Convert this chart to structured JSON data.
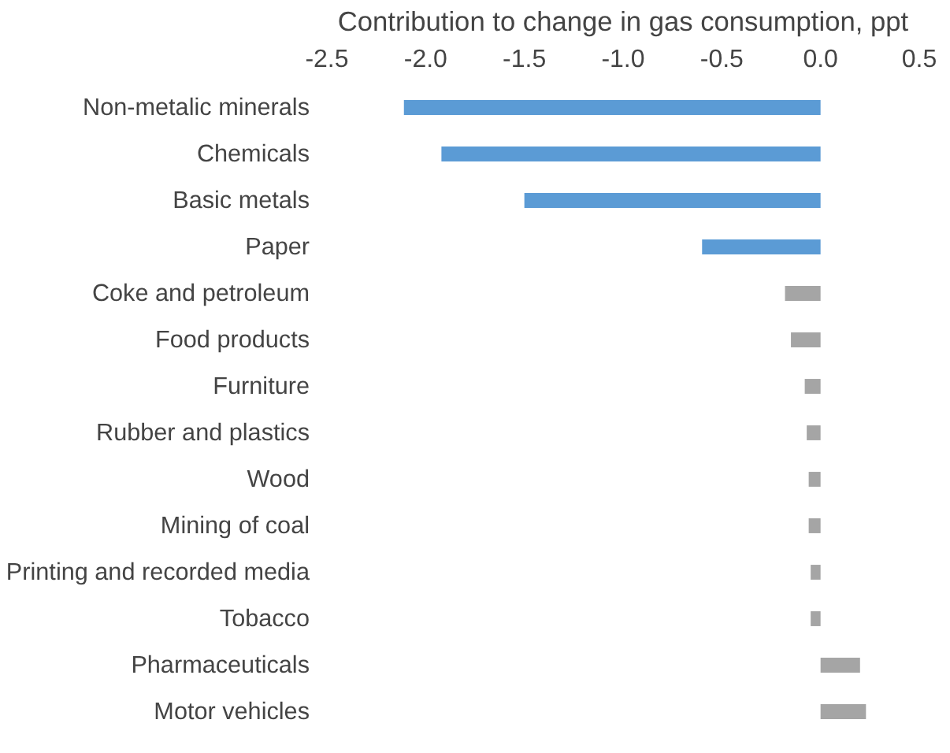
{
  "chart_data": {
    "type": "bar",
    "orientation": "horizontal",
    "xlabel": "Contribution to change in gas consumption, ppt",
    "categories": [
      "Non-metalic minerals",
      "Chemicals",
      "Basic metals",
      "Paper",
      "Coke and petroleum",
      "Food products",
      "Furniture",
      "Rubber and plastics",
      "Wood",
      "Mining of coal",
      "Printing and recorded media",
      "Tobacco",
      "Pharmaceuticals",
      "Motor vehicles"
    ],
    "values": [
      -2.11,
      -1.92,
      -1.5,
      -0.6,
      -0.18,
      -0.15,
      -0.08,
      -0.07,
      -0.06,
      -0.06,
      -0.05,
      -0.05,
      0.2,
      0.23
    ],
    "colors": [
      "#5b9bd5",
      "#5b9bd5",
      "#5b9bd5",
      "#5b9bd5",
      "#a5a5a5",
      "#a5a5a5",
      "#a5a5a5",
      "#a5a5a5",
      "#a5a5a5",
      "#a5a5a5",
      "#a5a5a5",
      "#a5a5a5",
      "#a5a5a5",
      "#a5a5a5"
    ],
    "xlim": [
      -2.5,
      0.5
    ],
    "xticks": [
      -2.5,
      {
        "value": -2,
        "label": "-2.0"
      },
      -1.5,
      {
        "value": -1,
        "label": "-1.0"
      },
      -0.5,
      {
        "value": 0,
        "label": "0.0"
      },
      0.5
    ],
    "grid": false
  }
}
